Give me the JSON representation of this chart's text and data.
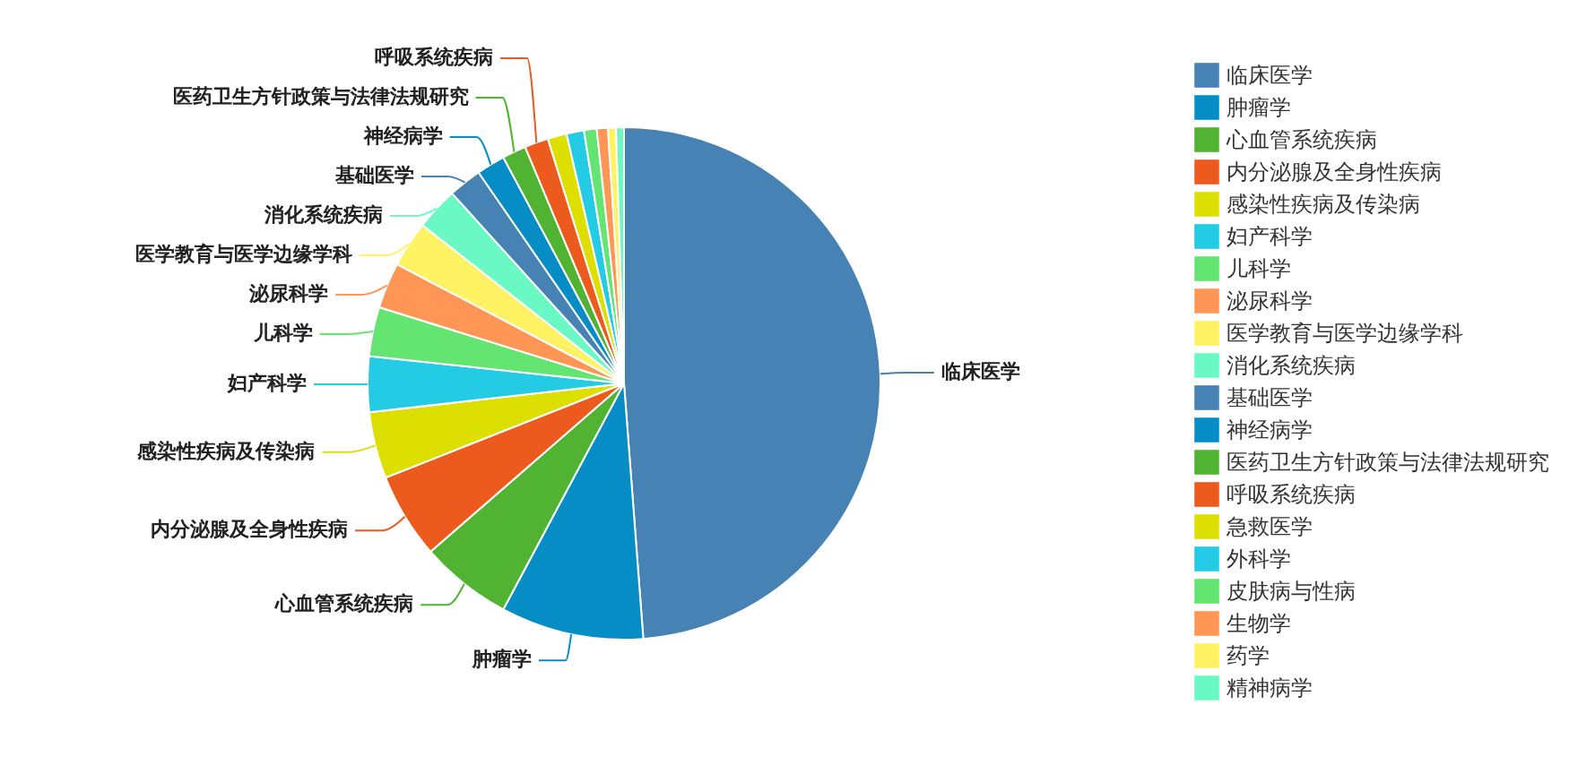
{
  "chart_data": {
    "type": "pie",
    "categories": [
      "临床医学",
      "肿瘤学",
      "心血管系统疾病",
      "内分泌腺及全身性疾病",
      "感染性疾病及传染病",
      "妇产科学",
      "儿科学",
      "泌尿科学",
      "医学教育与医学边缘学科",
      "消化系统疾病",
      "基础医学",
      "神经病学",
      "医药卫生方针政策与法律法规研究",
      "呼吸系统疾病",
      "急救医学",
      "外科学",
      "皮肤病与性病",
      "生物学",
      "药学",
      "精神病学"
    ],
    "values": [
      48.8,
      9.0,
      5.8,
      5.4,
      4.2,
      3.5,
      3.1,
      2.9,
      2.9,
      2.7,
      2.1,
      1.8,
      1.5,
      1.5,
      1.2,
      1.1,
      0.8,
      0.7,
      0.5,
      0.5
    ],
    "colors": [
      "#4682b4",
      "#078dc6",
      "#50b332",
      "#ed5a1e",
      "#dddf00",
      "#24cbe5",
      "#64e572",
      "#ff9655",
      "#fff263",
      "#6af9c4",
      "#4682b4",
      "#078dc6",
      "#50b332",
      "#ed5a1e",
      "#dddf00",
      "#24cbe5",
      "#64e572",
      "#ff9655",
      "#fff263",
      "#6af9c4"
    ],
    "value_labels": [
      "临床医学",
      "肿瘤学",
      "心血管系统疾病",
      "内分泌腺及全身性疾病",
      "感染性疾病及传染病",
      "妇产科学",
      "儿科学",
      "泌尿科学",
      "医学教育与医学边缘学科",
      "消化系统疾病",
      "基础医学",
      "神经病学",
      "医药卫生方针政策与法律法规研究",
      "呼吸系统疾病",
      null,
      null,
      null,
      null,
      null,
      null
    ],
    "legend": "right"
  }
}
